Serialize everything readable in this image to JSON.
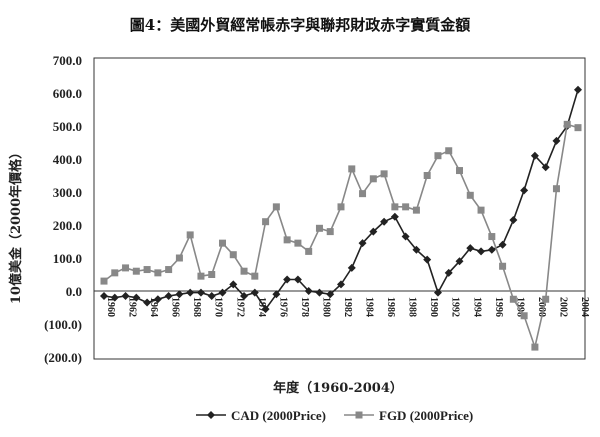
{
  "chart_data": {
    "type": "line",
    "title": "圖4：美國外貿經常帳赤字與聯邦財政赤字實質金額",
    "xlabel": "年度（1960-2004）",
    "ylabel": "10億美金（2000年價格）",
    "ylim": [
      -200,
      700
    ],
    "yticks": [
      "700.0",
      "600.0",
      "500.0",
      "400.0",
      "300.0",
      "200.0",
      "100.0",
      "0.0",
      "(100.0)",
      "(200.0)"
    ],
    "ytick_values": [
      700,
      600,
      500,
      400,
      300,
      200,
      100,
      0,
      -100,
      -200
    ],
    "xticks": [
      "1960",
      "1962",
      "1964",
      "1966",
      "1968",
      "1970",
      "1972",
      "1974",
      "1976",
      "1978",
      "1980",
      "1982",
      "1984",
      "1986",
      "1988",
      "1990",
      "1992",
      "1994",
      "1996",
      "1998",
      "2000",
      "2002",
      "2004"
    ],
    "x": [
      1960,
      1961,
      1962,
      1963,
      1964,
      1965,
      1966,
      1967,
      1968,
      1969,
      1970,
      1971,
      1972,
      1973,
      1974,
      1975,
      1976,
      1977,
      1978,
      1979,
      1980,
      1981,
      1982,
      1983,
      1984,
      1985,
      1986,
      1987,
      1988,
      1989,
      1990,
      1991,
      1992,
      1993,
      1994,
      1995,
      1996,
      1997,
      1998,
      1999,
      2000,
      2001,
      2002,
      2003,
      2004
    ],
    "grid": false,
    "legend_position": "bottom",
    "series": [
      {
        "name": "CAD (2000Price)",
        "color": "#222222",
        "marker": "diamond",
        "values": [
          -15,
          -20,
          -15,
          -20,
          -35,
          -25,
          -15,
          -10,
          -5,
          -5,
          -15,
          -5,
          20,
          -15,
          -5,
          -55,
          -10,
          35,
          35,
          0,
          -5,
          -10,
          20,
          70,
          145,
          180,
          210,
          225,
          165,
          125,
          95,
          -5,
          55,
          90,
          130,
          120,
          125,
          140,
          215,
          305,
          410,
          375,
          455,
          500,
          610
        ]
      },
      {
        "name": "FGD (2000Price)",
        "color": "#888888",
        "marker": "square",
        "values": [
          30,
          55,
          70,
          60,
          65,
          55,
          65,
          100,
          170,
          45,
          50,
          145,
          110,
          60,
          45,
          210,
          255,
          155,
          145,
          120,
          190,
          180,
          255,
          370,
          295,
          340,
          355,
          255,
          255,
          245,
          350,
          410,
          425,
          365,
          290,
          245,
          165,
          75,
          -25,
          -75,
          -170,
          -25,
          310,
          505,
          495
        ]
      }
    ]
  }
}
